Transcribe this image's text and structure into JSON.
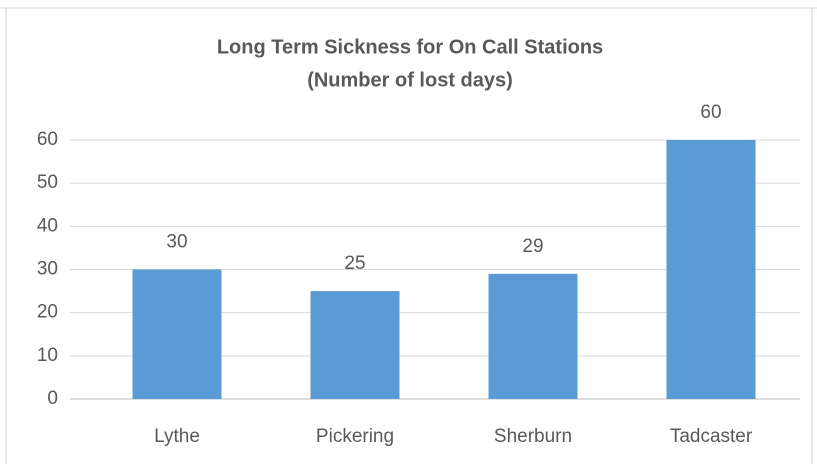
{
  "chart_data": {
    "type": "bar",
    "title": "Long Term Sickness for On Call Stations",
    "subtitle": "(Number of lost days)",
    "categories": [
      "Lythe",
      "Pickering",
      "Sherburn",
      "Tadcaster"
    ],
    "values": [
      30,
      25,
      29,
      60
    ],
    "color": "#5b9bd5",
    "ylim": [
      0,
      60
    ],
    "yticks": [
      0,
      10,
      20,
      30,
      40,
      50,
      60
    ],
    "grid": true
  }
}
